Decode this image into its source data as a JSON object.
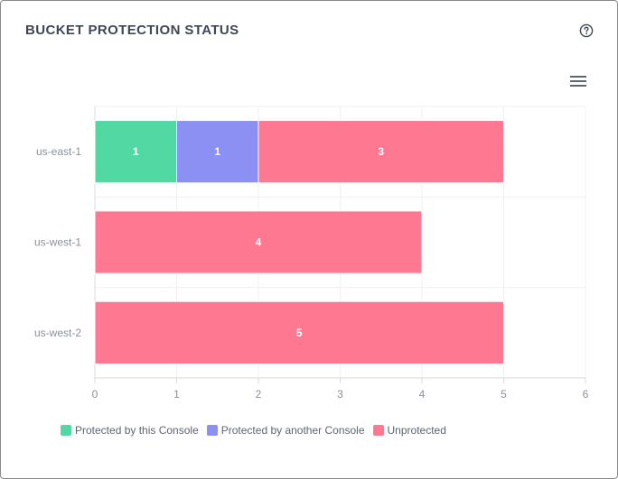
{
  "header": {
    "title": "BUCKET PROTECTION STATUS",
    "help_icon": "question-circle-icon",
    "menu_icon": "hamburger-menu-icon"
  },
  "chart_data": {
    "type": "bar",
    "orientation": "horizontal",
    "stacked": true,
    "categories": [
      "us-east-1",
      "us-west-1",
      "us-west-2"
    ],
    "series": [
      {
        "name": "Protected by this Console",
        "color": "#52d9a3",
        "values": [
          1,
          0,
          0
        ]
      },
      {
        "name": "Protected by another Console",
        "color": "#8b90f2",
        "values": [
          1,
          0,
          0
        ]
      },
      {
        "name": "Unprotected",
        "color": "#ff7891",
        "values": [
          3,
          4,
          5
        ]
      }
    ],
    "xlim": [
      0,
      6
    ],
    "xticks": [
      0,
      1,
      2,
      3,
      4,
      5,
      6
    ],
    "data_labels": true,
    "grid": true,
    "legend_position": "bottom-left"
  }
}
